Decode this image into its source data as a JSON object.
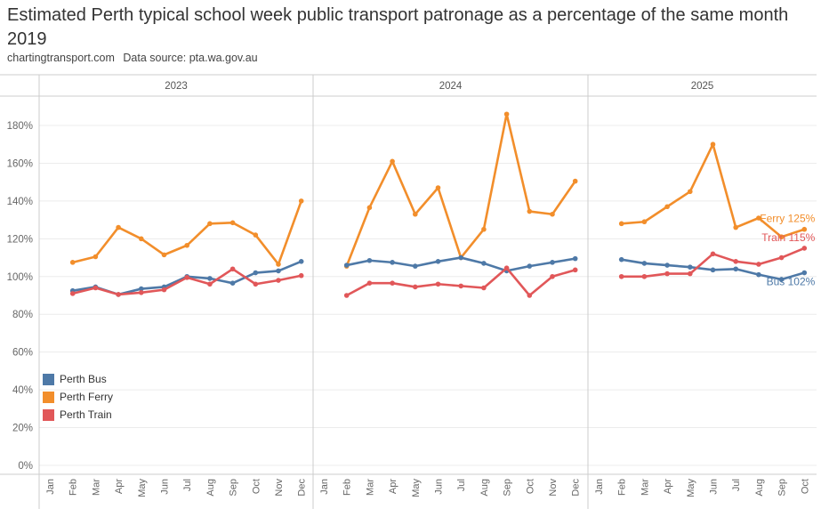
{
  "header": {
    "title": "Estimated Perth typical school week public transport patronage as a percentage of the same month 2019",
    "source_site": "chartingtransport.com",
    "source_label": "Data source: pta.wa.gov.au"
  },
  "chart_data": {
    "type": "line",
    "title": "Estimated Perth typical school week public transport patronage as a percentage of the same month 2019",
    "ylabel": "",
    "xlabel": "",
    "ylim": [
      0,
      190
    ],
    "yticks": [
      0,
      20,
      40,
      60,
      80,
      100,
      120,
      140,
      160,
      180
    ],
    "ytick_labels": [
      "0%",
      "20%",
      "40%",
      "60%",
      "80%",
      "100%",
      "120%",
      "140%",
      "160%",
      "180%"
    ],
    "grid": true,
    "legend_position": "bottom-left",
    "months": [
      "Jan",
      "Feb",
      "Mar",
      "Apr",
      "May",
      "Jun",
      "Jul",
      "Aug",
      "Sep",
      "Oct",
      "Nov",
      "Dec"
    ],
    "panels": [
      {
        "label": "2023",
        "series": [
          {
            "name": "Perth Bus",
            "color": "#4e79a7",
            "values": [
              null,
              92.5,
              94.5,
              90.5,
              93.5,
              94.5,
              100,
              99,
              96.5,
              102,
              103,
              108
            ]
          },
          {
            "name": "Perth Ferry",
            "color": "#f28e2b",
            "values": [
              null,
              107.5,
              110.5,
              126,
              120,
              111.5,
              116.5,
              128,
              128.5,
              122,
              106.5,
              140
            ]
          },
          {
            "name": "Perth Train",
            "color": "#e15759",
            "values": [
              null,
              91,
              94,
              90.5,
              91.5,
              93,
              99.5,
              96,
              104,
              96,
              98,
              100.5
            ]
          }
        ]
      },
      {
        "label": "2024",
        "series": [
          {
            "name": "Perth Bus",
            "color": "#4e79a7",
            "values": [
              null,
              106,
              108.5,
              107.5,
              105.5,
              108,
              110,
              107,
              103,
              105.5,
              107.5,
              109.5
            ]
          },
          {
            "name": "Perth Ferry",
            "color": "#f28e2b",
            "values": [
              null,
              105.5,
              136.5,
              161,
              133,
              147,
              110,
              125,
              186,
              134.5,
              133,
              150.5
            ]
          },
          {
            "name": "Perth Train",
            "color": "#e15759",
            "values": [
              null,
              90,
              96.5,
              96.5,
              94.5,
              96,
              95,
              94,
              104.5,
              90,
              100,
              103.5
            ]
          }
        ]
      },
      {
        "label": "2025",
        "series": [
          {
            "name": "Perth Bus",
            "color": "#4e79a7",
            "values": [
              null,
              109,
              107,
              106,
              105,
              103.5,
              104,
              101,
              98.5,
              102
            ]
          },
          {
            "name": "Perth Ferry",
            "color": "#f28e2b",
            "values": [
              null,
              128,
              129,
              137,
              145,
              170,
              126,
              131,
              121,
              125
            ]
          },
          {
            "name": "Perth Train",
            "color": "#e15759",
            "values": [
              null,
              100,
              100,
              101.5,
              101.5,
              112,
              108,
              106.5,
              110,
              115
            ]
          }
        ]
      }
    ],
    "annotations": [
      {
        "series": "Perth Ferry",
        "text": "Ferry 125%",
        "color": "#f28e2b"
      },
      {
        "series": "Perth Train",
        "text": "Train 115%",
        "color": "#e15759"
      },
      {
        "series": "Perth Bus",
        "text": "Bus 102%",
        "color": "#4e79a7"
      }
    ],
    "legend": [
      {
        "name": "Perth Bus",
        "color": "#4e79a7"
      },
      {
        "name": "Perth Ferry",
        "color": "#f28e2b"
      },
      {
        "name": "Perth Train",
        "color": "#e15759"
      }
    ]
  }
}
